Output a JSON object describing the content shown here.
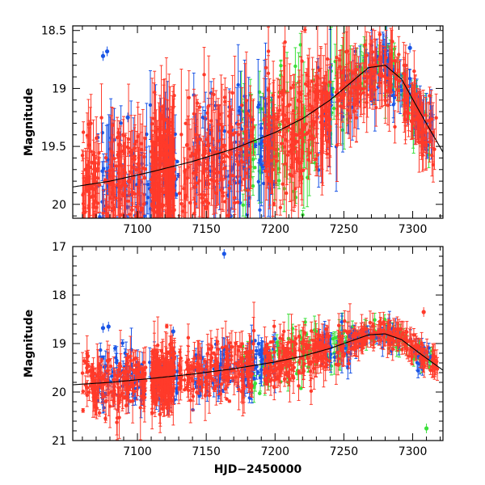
{
  "chart_data": [
    {
      "type": "scatter",
      "panel": "top",
      "title": "",
      "xlabel": "",
      "ylabel": "Magnitude",
      "xlim": [
        7053,
        7322
      ],
      "ylim": [
        20.12,
        18.46
      ],
      "y_inverted": true,
      "x_ticks": [
        7100,
        7150,
        7200,
        7250,
        7300
      ],
      "x_tick_labels": [
        "7100",
        "7150",
        "7200",
        "7250",
        "7300"
      ],
      "x_minor_step": 10,
      "y_ticks": [
        18.5,
        19,
        19.5,
        20
      ],
      "y_tick_labels": [
        "18.5",
        "19",
        "19.5",
        "20"
      ],
      "y_minor_step": 0.1,
      "series": [
        {
          "name": "red",
          "color": "#ff3a2a",
          "x_range": [
            7058,
            7318
          ],
          "segments": [
            [
              7060,
              7106
            ],
            [
              7110,
              7127
            ],
            [
              7130,
              7185
            ],
            [
              7192,
              7240
            ],
            [
              7244,
              7318
            ]
          ]
        },
        {
          "name": "blue",
          "color": "#1a55e6",
          "x_range": [
            7070,
            7315
          ],
          "segments": [
            [
              7070,
              7130
            ],
            [
              7140,
              7200
            ],
            [
              7230,
              7315
            ]
          ]
        },
        {
          "name": "green",
          "color": "#3be03b",
          "x_range": [
            7175,
            7315
          ],
          "segments": [
            [
              7175,
              7230
            ],
            [
              7236,
              7315
            ]
          ]
        }
      ],
      "model_curve": {
        "color": "#000000",
        "x": [
          7053,
          7080,
          7110,
          7140,
          7170,
          7200,
          7220,
          7240,
          7255,
          7268,
          7280,
          7292,
          7305,
          7322
        ],
        "y": [
          19.85,
          19.8,
          19.72,
          19.63,
          19.52,
          19.38,
          19.26,
          19.1,
          18.95,
          18.82,
          18.8,
          18.92,
          19.2,
          19.55
        ]
      },
      "highlighted_points": [
        {
          "x": 7075,
          "y": 18.72,
          "series": "blue"
        },
        {
          "x": 7078,
          "y": 18.68,
          "series": "blue"
        },
        {
          "x": 7093,
          "y": 19.25,
          "series": "blue"
        },
        {
          "x": 7298,
          "y": 18.65,
          "series": "blue"
        }
      ]
    },
    {
      "type": "scatter",
      "panel": "bottom",
      "title": "",
      "xlabel": "HJD−2450000",
      "ylabel": "Magnitude",
      "xlim": [
        7053,
        7322
      ],
      "ylim": [
        21,
        17
      ],
      "y_inverted": true,
      "x_ticks": [
        7100,
        7150,
        7200,
        7250,
        7300
      ],
      "x_tick_labels": [
        "7100",
        "7150",
        "7200",
        "7250",
        "7300"
      ],
      "x_minor_step": 10,
      "y_ticks": [
        17,
        18,
        19,
        20,
        21
      ],
      "y_tick_labels": [
        "17",
        "18",
        "19",
        "20",
        "21"
      ],
      "y_minor_step": 0.2,
      "series": [
        {
          "name": "red",
          "color": "#ff3a2a",
          "x_range": [
            7058,
            7318
          ],
          "segments": [
            [
              7060,
              7106
            ],
            [
              7110,
              7127
            ],
            [
              7130,
              7185
            ],
            [
              7192,
              7240
            ],
            [
              7244,
              7318
            ]
          ]
        },
        {
          "name": "blue",
          "color": "#1a55e6",
          "x_range": [
            7070,
            7315
          ],
          "segments": [
            [
              7070,
              7130
            ],
            [
              7140,
              7200
            ],
            [
              7230,
              7315
            ]
          ]
        },
        {
          "name": "green",
          "color": "#3be03b",
          "x_range": [
            7175,
            7315
          ],
          "segments": [
            [
              7175,
              7230
            ],
            [
              7236,
              7315
            ]
          ]
        }
      ],
      "model_curve": {
        "color": "#000000",
        "x": [
          7053,
          7080,
          7110,
          7140,
          7170,
          7200,
          7220,
          7240,
          7255,
          7268,
          7280,
          7292,
          7305,
          7322
        ],
        "y": [
          19.85,
          19.8,
          19.72,
          19.63,
          19.52,
          19.38,
          19.26,
          19.1,
          18.95,
          18.82,
          18.8,
          18.92,
          19.2,
          19.55
        ]
      },
      "highlighted_points": [
        {
          "x": 7075,
          "y": 18.68,
          "series": "blue"
        },
        {
          "x": 7079,
          "y": 18.65,
          "series": "blue"
        },
        {
          "x": 7126,
          "y": 18.75,
          "series": "blue"
        },
        {
          "x": 7163,
          "y": 17.15,
          "series": "blue"
        },
        {
          "x": 7308,
          "y": 18.35,
          "series": "red"
        },
        {
          "x": 7310,
          "y": 20.75,
          "series": "green"
        }
      ]
    }
  ]
}
